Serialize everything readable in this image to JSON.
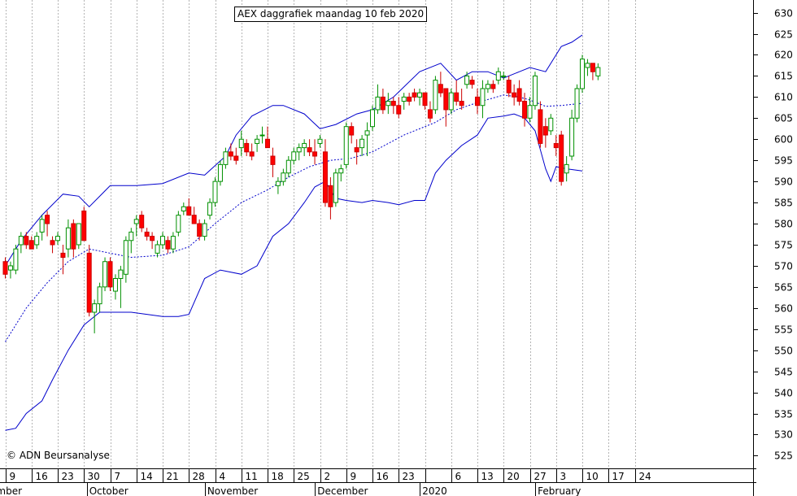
{
  "chart_data": {
    "type": "candlestick",
    "title": "AEX daggrafiek maandag 10 feb 2020",
    "copyright": "© ADN Beursanalyse",
    "ylim": [
      522,
      633
    ],
    "y_ticks": [
      525,
      530,
      535,
      540,
      545,
      550,
      555,
      560,
      565,
      570,
      575,
      580,
      585,
      590,
      595,
      600,
      605,
      610,
      615,
      620,
      625,
      630
    ],
    "x_day_labels": [
      {
        "i": 0,
        "label": "9"
      },
      {
        "i": 5,
        "label": "16"
      },
      {
        "i": 10,
        "label": "23"
      },
      {
        "i": 15,
        "label": "30"
      },
      {
        "i": 20,
        "label": "7"
      },
      {
        "i": 25,
        "label": "14"
      },
      {
        "i": 30,
        "label": "21"
      },
      {
        "i": 35,
        "label": "28"
      },
      {
        "i": 40,
        "label": "4"
      },
      {
        "i": 45,
        "label": "11"
      },
      {
        "i": 50,
        "label": "18"
      },
      {
        "i": 55,
        "label": "25"
      },
      {
        "i": 60,
        "label": "2"
      },
      {
        "i": 65,
        "label": "9"
      },
      {
        "i": 70,
        "label": "16"
      },
      {
        "i": 75,
        "label": "23"
      },
      {
        "i": 80,
        "label": ""
      },
      {
        "i": 85,
        "label": "6"
      },
      {
        "i": 90,
        "label": "13"
      },
      {
        "i": 95,
        "label": "20"
      },
      {
        "i": 100,
        "label": "27"
      },
      {
        "i": 105,
        "label": "3"
      },
      {
        "i": 110,
        "label": "10"
      },
      {
        "i": 115,
        "label": "17"
      },
      {
        "i": 120,
        "label": "24"
      }
    ],
    "x_month_labels": [
      {
        "i": -1,
        "label": "ember"
      },
      {
        "i": 16,
        "label": "October"
      },
      {
        "i": 38.5,
        "label": "November"
      },
      {
        "i": 59.5,
        "label": "December"
      },
      {
        "i": 79.5,
        "label": "2020"
      },
      {
        "i": 101.5,
        "label": "February"
      }
    ],
    "candles": [
      {
        "o": 571,
        "h": 572,
        "l": 567,
        "c": 568
      },
      {
        "o": 569,
        "h": 571,
        "l": 567,
        "c": 570
      },
      {
        "o": 569,
        "h": 575,
        "l": 568,
        "c": 574
      },
      {
        "o": 575,
        "h": 578,
        "l": 573,
        "c": 577
      },
      {
        "o": 577,
        "h": 578,
        "l": 574,
        "c": 575
      },
      {
        "o": 576,
        "h": 577,
        "l": 574,
        "c": 574
      },
      {
        "o": 575,
        "h": 578,
        "l": 574,
        "c": 577
      },
      {
        "o": 578,
        "h": 582,
        "l": 576,
        "c": 581
      },
      {
        "o": 582,
        "h": 583,
        "l": 577,
        "c": 580
      },
      {
        "o": 576,
        "h": 577,
        "l": 573,
        "c": 575
      },
      {
        "o": 576,
        "h": 578,
        "l": 575,
        "c": 577
      },
      {
        "o": 573,
        "h": 575,
        "l": 568,
        "c": 572
      },
      {
        "o": 574,
        "h": 581,
        "l": 572,
        "c": 579
      },
      {
        "o": 580,
        "h": 581,
        "l": 572,
        "c": 574
      },
      {
        "o": 575,
        "h": 580,
        "l": 574,
        "c": 580
      },
      {
        "o": 583,
        "h": 584,
        "l": 576,
        "c": 576
      },
      {
        "o": 573,
        "h": 575,
        "l": 558,
        "c": 559
      },
      {
        "o": 559,
        "h": 562,
        "l": 554,
        "c": 561
      },
      {
        "o": 561,
        "h": 566,
        "l": 559,
        "c": 565
      },
      {
        "o": 565,
        "h": 572,
        "l": 564,
        "c": 571
      },
      {
        "o": 571,
        "h": 572,
        "l": 564,
        "c": 565
      },
      {
        "o": 564,
        "h": 568,
        "l": 562,
        "c": 567
      },
      {
        "o": 567,
        "h": 570,
        "l": 560,
        "c": 569
      },
      {
        "o": 568,
        "h": 577,
        "l": 566,
        "c": 576
      },
      {
        "o": 576,
        "h": 579,
        "l": 573,
        "c": 578
      },
      {
        "o": 580,
        "h": 582,
        "l": 577,
        "c": 581
      },
      {
        "o": 582,
        "h": 583,
        "l": 578,
        "c": 579
      },
      {
        "o": 578,
        "h": 579,
        "l": 576,
        "c": 577
      },
      {
        "o": 577,
        "h": 578,
        "l": 574,
        "c": 576
      },
      {
        "o": 573,
        "h": 576,
        "l": 572,
        "c": 575
      },
      {
        "o": 575,
        "h": 578,
        "l": 574,
        "c": 577
      },
      {
        "o": 576,
        "h": 577,
        "l": 573,
        "c": 574
      },
      {
        "o": 574,
        "h": 578,
        "l": 573,
        "c": 577
      },
      {
        "o": 578,
        "h": 583,
        "l": 577,
        "c": 582
      },
      {
        "o": 583,
        "h": 585,
        "l": 582,
        "c": 584
      },
      {
        "o": 584,
        "h": 586,
        "l": 583,
        "c": 582
      },
      {
        "o": 582,
        "h": 584,
        "l": 580,
        "c": 580
      },
      {
        "o": 580,
        "h": 581,
        "l": 576,
        "c": 577
      },
      {
        "o": 577,
        "h": 581,
        "l": 576,
        "c": 580
      },
      {
        "o": 582,
        "h": 586,
        "l": 581,
        "c": 585
      },
      {
        "o": 585,
        "h": 591,
        "l": 584,
        "c": 590
      },
      {
        "o": 590,
        "h": 595,
        "l": 589,
        "c": 594
      },
      {
        "o": 594,
        "h": 598,
        "l": 593,
        "c": 597
      },
      {
        "o": 597,
        "h": 599,
        "l": 595,
        "c": 596
      },
      {
        "o": 596,
        "h": 598,
        "l": 594,
        "c": 595
      },
      {
        "o": 598,
        "h": 602,
        "l": 596,
        "c": 600
      },
      {
        "o": 599,
        "h": 600,
        "l": 596,
        "c": 597
      },
      {
        "o": 597,
        "h": 599,
        "l": 595,
        "c": 596
      },
      {
        "o": 599,
        "h": 601,
        "l": 597,
        "c": 600
      },
      {
        "o": 601,
        "h": 603,
        "l": 599,
        "c": 601
      },
      {
        "o": 600,
        "h": 603,
        "l": 598,
        "c": 598
      },
      {
        "o": 596,
        "h": 598,
        "l": 591,
        "c": 594
      },
      {
        "o": 589,
        "h": 591,
        "l": 587,
        "c": 590
      },
      {
        "o": 590,
        "h": 593,
        "l": 589,
        "c": 592
      },
      {
        "o": 592,
        "h": 596,
        "l": 591,
        "c": 595
      },
      {
        "o": 595,
        "h": 598,
        "l": 594,
        "c": 597
      },
      {
        "o": 597,
        "h": 599,
        "l": 595,
        "c": 598
      },
      {
        "o": 598,
        "h": 600,
        "l": 596,
        "c": 599
      },
      {
        "o": 598,
        "h": 600,
        "l": 596,
        "c": 597
      },
      {
        "o": 597,
        "h": 600,
        "l": 594,
        "c": 596
      },
      {
        "o": 599,
        "h": 601,
        "l": 598,
        "c": 600
      },
      {
        "o": 597,
        "h": 600,
        "l": 584,
        "c": 585
      },
      {
        "o": 589,
        "h": 591,
        "l": 581,
        "c": 584
      },
      {
        "o": 585,
        "h": 593,
        "l": 584,
        "c": 592
      },
      {
        "o": 592,
        "h": 594,
        "l": 590,
        "c": 593
      },
      {
        "o": 594,
        "h": 604,
        "l": 593,
        "c": 603
      },
      {
        "o": 603,
        "h": 604,
        "l": 599,
        "c": 601
      },
      {
        "o": 598,
        "h": 600,
        "l": 594,
        "c": 597
      },
      {
        "o": 598,
        "h": 601,
        "l": 596,
        "c": 600
      },
      {
        "o": 601,
        "h": 604,
        "l": 596,
        "c": 602
      },
      {
        "o": 603,
        "h": 608,
        "l": 602,
        "c": 607
      },
      {
        "o": 607,
        "h": 613,
        "l": 606,
        "c": 610
      },
      {
        "o": 610,
        "h": 612,
        "l": 606,
        "c": 607
      },
      {
        "o": 608,
        "h": 611,
        "l": 606,
        "c": 609
      },
      {
        "o": 609,
        "h": 610,
        "l": 606,
        "c": 608
      },
      {
        "o": 608,
        "h": 610,
        "l": 605,
        "c": 606
      },
      {
        "o": 609,
        "h": 611,
        "l": 607,
        "c": 610
      },
      {
        "o": 610,
        "h": 611,
        "l": 608,
        "c": 609
      },
      {
        "o": 611,
        "h": 612,
        "l": 609,
        "c": 610
      },
      {
        "o": 610,
        "h": 612,
        "l": 608,
        "c": 611
      },
      {
        "o": 611,
        "h": 611,
        "l": 607,
        "c": 608
      },
      {
        "o": 607,
        "h": 609,
        "l": 604,
        "c": 605
      },
      {
        "o": 607,
        "h": 615,
        "l": 606,
        "c": 614
      },
      {
        "o": 613,
        "h": 616,
        "l": 610,
        "c": 611
      },
      {
        "o": 612,
        "h": 612,
        "l": 603,
        "c": 607
      },
      {
        "o": 607,
        "h": 612,
        "l": 606,
        "c": 611
      },
      {
        "o": 611,
        "h": 614,
        "l": 608,
        "c": 609
      },
      {
        "o": 609,
        "h": 612,
        "l": 607,
        "c": 608
      },
      {
        "o": 613,
        "h": 616,
        "l": 612,
        "c": 615
      },
      {
        "o": 614,
        "h": 615,
        "l": 612,
        "c": 613
      },
      {
        "o": 610,
        "h": 612,
        "l": 606,
        "c": 608
      },
      {
        "o": 608,
        "h": 614,
        "l": 605,
        "c": 612
      },
      {
        "o": 612,
        "h": 614,
        "l": 611,
        "c": 613
      },
      {
        "o": 613,
        "h": 614,
        "l": 611,
        "c": 612
      },
      {
        "o": 614,
        "h": 617,
        "l": 613,
        "c": 616
      },
      {
        "o": 615,
        "h": 616,
        "l": 614,
        "c": 615
      },
      {
        "o": 614,
        "h": 615,
        "l": 610,
        "c": 611
      },
      {
        "o": 611,
        "h": 613,
        "l": 608,
        "c": 610
      },
      {
        "o": 612,
        "h": 614,
        "l": 608,
        "c": 609
      },
      {
        "o": 609,
        "h": 611,
        "l": 603,
        "c": 605
      },
      {
        "o": 605,
        "h": 610,
        "l": 604,
        "c": 608
      },
      {
        "o": 608,
        "h": 616,
        "l": 607,
        "c": 615
      },
      {
        "o": 607,
        "h": 609,
        "l": 598,
        "c": 599
      },
      {
        "o": 603,
        "h": 605,
        "l": 598,
        "c": 601
      },
      {
        "o": 602,
        "h": 606,
        "l": 601,
        "c": 605
      },
      {
        "o": 599,
        "h": 601,
        "l": 596,
        "c": 598
      },
      {
        "o": 601,
        "h": 602,
        "l": 589,
        "c": 590
      },
      {
        "o": 592,
        "h": 596,
        "l": 590,
        "c": 594
      },
      {
        "o": 596,
        "h": 607,
        "l": 595,
        "c": 605
      },
      {
        "o": 605,
        "h": 613,
        "l": 604,
        "c": 612
      },
      {
        "o": 612,
        "h": 620,
        "l": 611,
        "c": 619
      },
      {
        "o": 617,
        "h": 619,
        "l": 615,
        "c": 618
      },
      {
        "o": 618,
        "h": 618,
        "l": 614,
        "c": 616
      },
      {
        "o": 615,
        "h": 618,
        "l": 614,
        "c": 617
      }
    ],
    "bollinger": {
      "upper": [
        [
          0,
          570
        ],
        [
          3,
          576
        ],
        [
          7,
          582
        ],
        [
          11,
          587
        ],
        [
          14,
          586.5
        ],
        [
          16,
          584
        ],
        [
          20,
          589
        ],
        [
          25,
          589
        ],
        [
          30,
          589.5
        ],
        [
          35,
          592
        ],
        [
          38,
          591.5
        ],
        [
          42,
          596
        ],
        [
          44,
          601
        ],
        [
          47,
          605.5
        ],
        [
          51,
          608
        ],
        [
          53,
          608
        ],
        [
          57,
          606
        ],
        [
          60,
          602.5
        ],
        [
          63,
          603.5
        ],
        [
          67,
          606
        ],
        [
          70,
          607
        ],
        [
          74,
          610
        ],
        [
          79,
          616
        ],
        [
          83,
          618
        ],
        [
          86,
          614
        ],
        [
          89,
          616
        ],
        [
          92,
          616
        ],
        [
          95,
          614.5
        ],
        [
          98,
          616
        ],
        [
          100,
          617
        ],
        [
          103,
          616
        ],
        [
          106,
          622
        ],
        [
          108,
          623
        ],
        [
          110,
          624.7
        ]
      ],
      "middle": [
        [
          0,
          552
        ],
        [
          4,
          560
        ],
        [
          8,
          566
        ],
        [
          12,
          571
        ],
        [
          16,
          574
        ],
        [
          20,
          573
        ],
        [
          24,
          572
        ],
        [
          30,
          572.5
        ],
        [
          35,
          574.5
        ],
        [
          40,
          580
        ],
        [
          45,
          585
        ],
        [
          50,
          588
        ],
        [
          54,
          591
        ],
        [
          58,
          593.5
        ],
        [
          62,
          595
        ],
        [
          66,
          595.5
        ],
        [
          70,
          597
        ],
        [
          76,
          601
        ],
        [
          82,
          604
        ],
        [
          86,
          607
        ],
        [
          90,
          608.7
        ],
        [
          95,
          610.5
        ],
        [
          98,
          610
        ],
        [
          100,
          609.3
        ],
        [
          103,
          607.8
        ],
        [
          106,
          608
        ],
        [
          110,
          608.5
        ]
      ],
      "lower": [
        [
          0,
          531
        ],
        [
          2,
          531.5
        ],
        [
          4,
          535
        ],
        [
          7,
          538
        ],
        [
          9,
          543
        ],
        [
          12,
          550
        ],
        [
          15,
          556
        ],
        [
          18,
          559
        ],
        [
          21,
          559
        ],
        [
          24,
          559
        ],
        [
          27,
          558.5
        ],
        [
          30,
          558
        ],
        [
          33,
          558
        ],
        [
          35,
          558.5
        ],
        [
          38,
          567
        ],
        [
          41,
          569
        ],
        [
          45,
          568
        ],
        [
          48,
          570
        ],
        [
          51,
          577
        ],
        [
          54,
          580
        ],
        [
          57,
          585
        ],
        [
          59,
          588.7
        ],
        [
          61,
          590
        ],
        [
          63,
          586
        ],
        [
          65,
          585.5
        ],
        [
          68,
          585
        ],
        [
          70,
          585.5
        ],
        [
          73,
          585
        ],
        [
          75,
          584.5
        ],
        [
          78,
          585.5
        ],
        [
          80,
          585.5
        ],
        [
          82,
          592
        ],
        [
          84,
          595
        ],
        [
          87,
          598.5
        ],
        [
          90,
          601
        ],
        [
          92,
          605
        ],
        [
          95,
          605.5
        ],
        [
          97,
          606
        ],
        [
          99,
          605
        ],
        [
          101,
          602
        ],
        [
          103,
          593
        ],
        [
          104,
          590
        ],
        [
          105,
          593.5
        ],
        [
          107,
          593
        ],
        [
          110,
          592.5
        ]
      ]
    }
  },
  "colors": {
    "candle_up_fill": "#ffffff",
    "candle_up_border": "#009000",
    "candle_down_fill": "#ff0000",
    "candle_down_border": "#cc0000",
    "bollinger": "#0000cc",
    "grid": "#b4b4b4",
    "axis": "#000000"
  }
}
